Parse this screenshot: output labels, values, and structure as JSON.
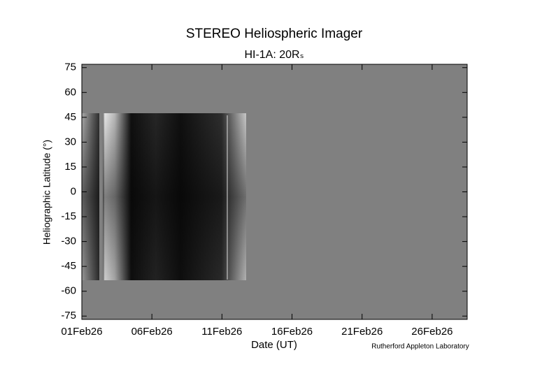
{
  "chart_data": {
    "type": "image",
    "title": "STEREO Heliospheric Imager",
    "subtitle": "HI-1A: 20Rₛ",
    "xlabel": "Date (UT)",
    "ylabel": "Heliographic Latitude (°)",
    "credit": "Rutherford Appleton Laboratory",
    "xlim": [
      1,
      28.5
    ],
    "xticks": [
      {
        "value": 1,
        "label": "01Feb26"
      },
      {
        "value": 6,
        "label": "06Feb26"
      },
      {
        "value": 11,
        "label": "11Feb26"
      },
      {
        "value": 16,
        "label": "16Feb26"
      },
      {
        "value": 21,
        "label": "21Feb26"
      },
      {
        "value": 26,
        "label": "26Feb26"
      }
    ],
    "ylim": [
      -77,
      77
    ],
    "yticks": [
      75,
      60,
      45,
      30,
      15,
      0,
      -15,
      -30,
      -45,
      -60,
      -75
    ],
    "background": "#808080"
  }
}
